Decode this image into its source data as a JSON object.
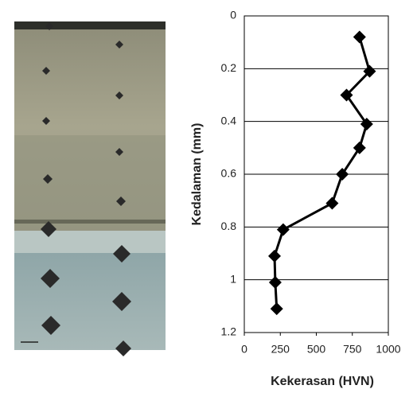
{
  "chart_data": {
    "type": "line",
    "y_label": "Kedalaman (mm)",
    "x_label": "Kekerasan (HVN)",
    "series": [
      {
        "color": "#000000",
        "x": [
          800,
          870,
          710,
          850,
          800,
          680,
          610,
          270,
          210,
          215,
          225
        ],
        "values": [
          0.08,
          0.21,
          0.3,
          0.41,
          0.5,
          0.6,
          0.71,
          0.81,
          0.91,
          1.01,
          1.11
        ]
      }
    ],
    "xlim": [
      0,
      1000
    ],
    "xticks": [
      0,
      250,
      500,
      750,
      1000
    ],
    "ylim": [
      0,
      1.2
    ],
    "yticks": [
      0,
      0.2,
      0.4,
      0.6,
      0.8,
      1,
      1.2
    ],
    "y_inverted": true,
    "grid": true
  }
}
